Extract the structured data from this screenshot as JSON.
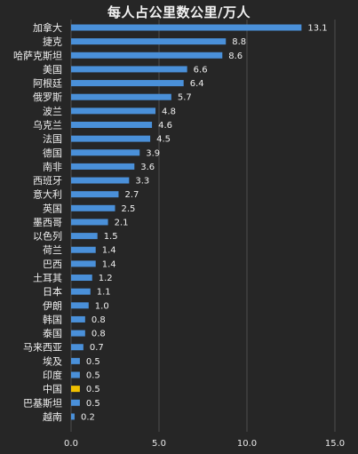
{
  "chart_data": {
    "type": "bar",
    "orientation": "horizontal",
    "title": "每人占公里数公里/万人",
    "categories": [
      "加拿大",
      "捷克",
      "哈萨克斯坦",
      "美国",
      "阿根廷",
      "俄罗斯",
      "波兰",
      "乌克兰",
      "法国",
      "德国",
      "南非",
      "西班牙",
      "意大利",
      "英国",
      "墨西哥",
      "以色列",
      "荷兰",
      "巴西",
      "土耳其",
      "日本",
      "伊朗",
      "韩国",
      "泰国",
      "马来西亚",
      "埃及",
      "印度",
      "中国",
      "巴基斯坦",
      "越南"
    ],
    "values": [
      13.1,
      8.8,
      8.6,
      6.6,
      6.4,
      5.7,
      4.8,
      4.6,
      4.5,
      3.9,
      3.6,
      3.3,
      2.7,
      2.5,
      2.1,
      1.5,
      1.4,
      1.4,
      1.2,
      1.1,
      1.0,
      0.8,
      0.8,
      0.7,
      0.5,
      0.5,
      0.5,
      0.5,
      0.2
    ],
    "value_labels": [
      "13.1",
      "8.8",
      "8.6",
      "6.6",
      "6.4",
      "5.7",
      "4.8",
      "4.6",
      "4.5",
      "3.9",
      "3.6",
      "3.3",
      "2.7",
      "2.5",
      "2.1",
      "1.5",
      "1.4",
      "1.4",
      "1.2",
      "1.1",
      "1.0",
      "0.8",
      "0.8",
      "0.7",
      "0.5",
      "0.5",
      "0.5",
      "0.5",
      "0.2"
    ],
    "xlim": [
      0,
      15
    ],
    "x_ticks": [
      "0.0",
      "5.0",
      "10.0",
      "15.0"
    ],
    "grid": true,
    "colors": {
      "background": "#262626",
      "bar": "#4a90d9",
      "highlight": "#f0c000",
      "grid": "#4d4d4d",
      "text": "#f0f0f0"
    },
    "highlight_category": "中国"
  }
}
